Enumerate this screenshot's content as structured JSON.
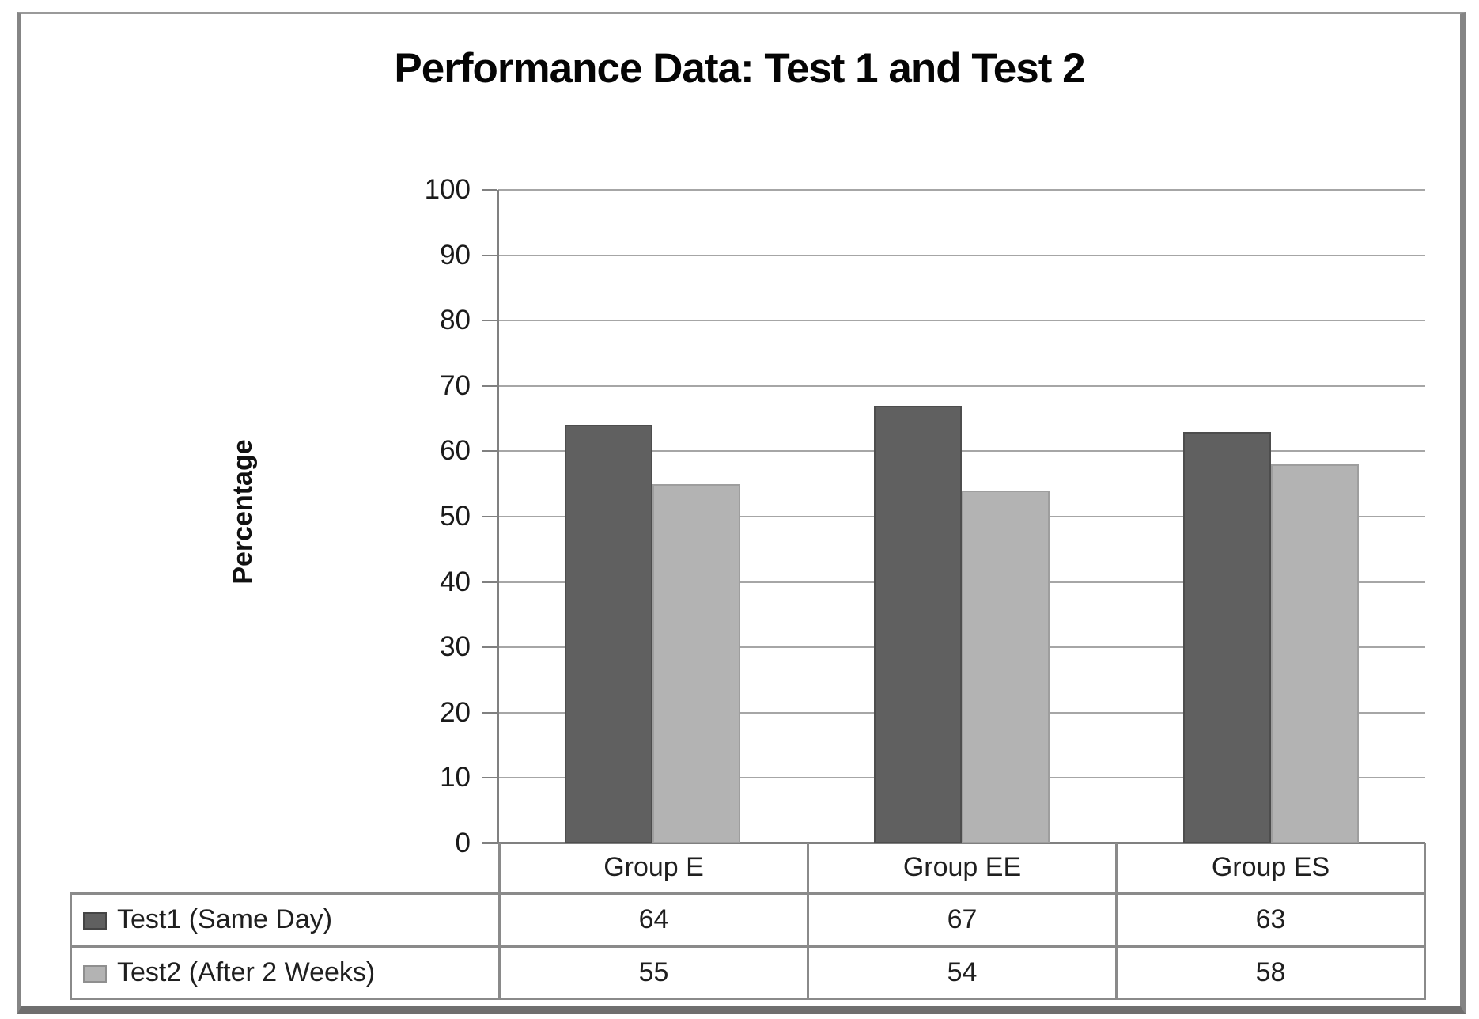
{
  "title": "Performance Data: Test 1 and Test 2",
  "chart_data": {
    "type": "bar",
    "categories": [
      "Group E",
      "Group EE",
      "Group ES"
    ],
    "series": [
      {
        "name": "Test1 (Same Day)",
        "values": [
          64,
          67,
          63
        ],
        "color": "#606060",
        "border_color": "#4d4d4d",
        "swatch_border": "#454545"
      },
      {
        "name": "Test2 (After 2 Weeks)",
        "values": [
          55,
          54,
          58
        ],
        "color": "#b3b3b3",
        "border_color": "#9e9e9e",
        "swatch_border": "#8f8f8f"
      }
    ],
    "title": "Performance Data: Test 1 and Test 2",
    "xlabel": "",
    "ylabel": "Percentage",
    "ylim": [
      0,
      100
    ],
    "ytick_step": 10,
    "grid": true,
    "legend_position": "table-left",
    "colors": {
      "gridline": "#a6a6a6",
      "axis": "#808080",
      "table_border": "#8a8a8a",
      "text": "#1f1f1f"
    }
  }
}
